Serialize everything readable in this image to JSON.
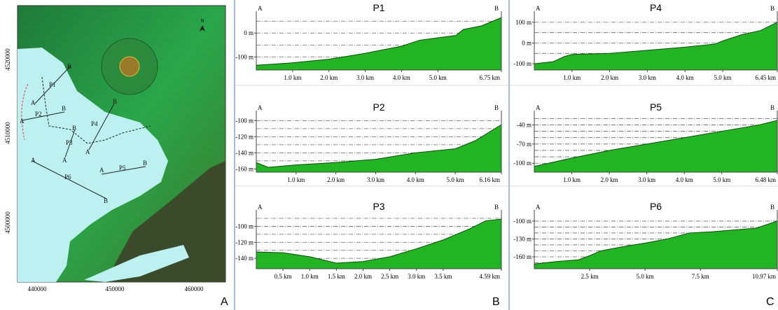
{
  "panel_labels": [
    "A",
    "B",
    "C"
  ],
  "map": {
    "north": "N",
    "xticks": [
      440000,
      450000,
      460000
    ],
    "yticks": [
      4520000,
      4510000,
      4500000
    ],
    "profiles": [
      {
        "name": "P1",
        "start": "A",
        "end": "B"
      },
      {
        "name": "P2",
        "start": "A",
        "end": "B"
      },
      {
        "name": "P3",
        "start": "A",
        "end": "B"
      },
      {
        "name": "P4",
        "start": "A",
        "end": "B"
      },
      {
        "name": "P5",
        "start": "A",
        "end": "B"
      },
      {
        "name": "P6",
        "start": "A",
        "end": "B"
      }
    ]
  },
  "chart_data": [
    {
      "type": "area",
      "title": "P1",
      "start_label": "A",
      "end_label": "B",
      "color": "#22b422",
      "x": [
        0,
        1,
        2,
        3,
        4,
        4.5,
        5,
        5.5,
        5.7,
        6.2,
        6.75
      ],
      "values": [
        -135,
        -125,
        -110,
        -85,
        -55,
        -30,
        -20,
        -10,
        15,
        30,
        65
      ],
      "xlim": [
        0,
        6.75
      ],
      "ylim": [
        -155,
        80
      ],
      "xticks": [
        {
          "value": 1,
          "label": "1.0 km"
        },
        {
          "value": 2,
          "label": "2.0 km"
        },
        {
          "value": 3,
          "label": "3.0 km"
        },
        {
          "value": 4,
          "label": "4.0 km"
        },
        {
          "value": 5,
          "label": "5.0 km"
        },
        {
          "value": 6.75,
          "label": "6.75 km"
        }
      ],
      "yticks": [
        {
          "value": 0,
          "label": "0 m"
        },
        {
          "value": -100,
          "label": "-100 m"
        }
      ],
      "grid_lines": [
        50,
        0,
        -50,
        -100,
        -150
      ]
    },
    {
      "type": "area",
      "title": "P2",
      "start_label": "A",
      "end_label": "B",
      "color": "#22b422",
      "x": [
        0,
        0.3,
        1,
        2,
        3,
        4,
        5,
        5.5,
        6.16
      ],
      "values": [
        -152,
        -158,
        -155,
        -152,
        -148,
        -140,
        -135,
        -125,
        -105
      ],
      "xlim": [
        0,
        6.16
      ],
      "ylim": [
        -164,
        -91
      ],
      "xticks": [
        {
          "value": 1,
          "label": "1.0 km"
        },
        {
          "value": 2,
          "label": "2.0 km"
        },
        {
          "value": 3,
          "label": "3.0 km"
        },
        {
          "value": 4,
          "label": "4.0 km"
        },
        {
          "value": 5,
          "label": "5.0 km"
        },
        {
          "value": 6.16,
          "label": "6.16 km"
        }
      ],
      "yticks": [
        {
          "value": -100,
          "label": "-100 m"
        },
        {
          "value": -120,
          "label": "-120 m"
        },
        {
          "value": -140,
          "label": "-140 m"
        },
        {
          "value": -160,
          "label": "-160 m"
        }
      ],
      "grid_lines": [
        -100,
        -110,
        -120,
        -130,
        -140,
        -150,
        -160
      ]
    },
    {
      "type": "area",
      "title": "P3",
      "start_label": "A",
      "end_label": "B",
      "color": "#22b422",
      "x": [
        0,
        0.5,
        1,
        1.5,
        2,
        2.5,
        3,
        3.5,
        4,
        4.3,
        4.59
      ],
      "values": [
        -132,
        -133,
        -138,
        -146,
        -144,
        -138,
        -128,
        -117,
        -103,
        -93,
        -91
      ],
      "xlim": [
        0,
        4.59
      ],
      "ylim": [
        -153,
        -83
      ],
      "xticks": [
        {
          "value": 0.5,
          "label": "0.5 km"
        },
        {
          "value": 1,
          "label": "1.0 km"
        },
        {
          "value": 1.5,
          "label": "1.5 km"
        },
        {
          "value": 2,
          "label": "2.0 km"
        },
        {
          "value": 2.5,
          "label": "2.5 km"
        },
        {
          "value": 3,
          "label": "3.0 km"
        },
        {
          "value": 3.5,
          "label": "3.5 km"
        },
        {
          "value": 4.59,
          "label": "4.59 km"
        }
      ],
      "yticks": [
        {
          "value": -100,
          "label": "-100 m"
        },
        {
          "value": -120,
          "label": "-120 m"
        },
        {
          "value": -140,
          "label": "-140 m"
        }
      ],
      "grid_lines": [
        -90,
        -100,
        -110,
        -120,
        -130,
        -140,
        -150
      ]
    },
    {
      "type": "area",
      "title": "P4",
      "start_label": "A",
      "end_label": "B",
      "color": "#22b422",
      "x": [
        0,
        0.5,
        0.8,
        1,
        2,
        3,
        4,
        4.8,
        5,
        5.5,
        6,
        6.45
      ],
      "values": [
        -100,
        -90,
        -65,
        -55,
        -50,
        -35,
        -20,
        -5,
        10,
        40,
        60,
        100
      ],
      "xlim": [
        0,
        6.45
      ],
      "ylim": [
        -130,
        140
      ],
      "xticks": [
        {
          "value": 1,
          "label": "1.0 km"
        },
        {
          "value": 2,
          "label": "2.0 km"
        },
        {
          "value": 3,
          "label": "3.0 km"
        },
        {
          "value": 4,
          "label": "4.0 km"
        },
        {
          "value": 5,
          "label": "5.0 km"
        },
        {
          "value": 6.45,
          "label": "6.45 km"
        }
      ],
      "yticks": [
        {
          "value": 100,
          "label": "100 m"
        },
        {
          "value": 0,
          "label": "0 m"
        },
        {
          "value": -100,
          "label": "-100 m"
        }
      ],
      "grid_lines": [
        100,
        50,
        0,
        -50,
        -100
      ]
    },
    {
      "type": "area",
      "title": "P5",
      "start_label": "A",
      "end_label": "B",
      "color": "#22b422",
      "x": [
        0,
        1,
        2,
        3,
        4,
        5,
        6,
        6.48
      ],
      "values": [
        -105,
        -92,
        -80,
        -70,
        -60,
        -50,
        -40,
        -33
      ],
      "xlim": [
        0,
        6.48
      ],
      "ylim": [
        -114,
        -22
      ],
      "xticks": [
        {
          "value": 1,
          "label": "1.0 km"
        },
        {
          "value": 2,
          "label": "2.0 km"
        },
        {
          "value": 3,
          "label": "3.0 km"
        },
        {
          "value": 4,
          "label": "4.0 km"
        },
        {
          "value": 5,
          "label": "5.0 km"
        },
        {
          "value": 6.48,
          "label": "6.48 km"
        }
      ],
      "yticks": [
        {
          "value": -40,
          "label": "-40 m"
        },
        {
          "value": -70,
          "label": "-70 m"
        },
        {
          "value": -100,
          "label": "-100 m"
        }
      ],
      "grid_lines": [
        -30,
        -40,
        -50,
        -60,
        -70,
        -80,
        -90,
        -100
      ]
    },
    {
      "type": "area",
      "title": "P6",
      "start_label": "A",
      "end_label": "B",
      "color": "#22b422",
      "x": [
        0,
        1,
        2,
        2.5,
        3,
        4,
        5,
        6,
        7,
        8,
        9,
        10,
        10.97
      ],
      "values": [
        -172,
        -168,
        -165,
        -158,
        -150,
        -143,
        -137,
        -130,
        -120,
        -118,
        -115,
        -112,
        -100
      ],
      "xlim": [
        0,
        10.97
      ],
      "ylim": [
        -180,
        -86
      ],
      "xticks": [
        {
          "value": 2.5,
          "label": "2.5 km"
        },
        {
          "value": 5,
          "label": "5.0 km"
        },
        {
          "value": 7.5,
          "label": "7.5 km"
        },
        {
          "value": 10.97,
          "label": "10.97 km"
        }
      ],
      "yticks": [
        {
          "value": -100,
          "label": "-100 m"
        },
        {
          "value": -130,
          "label": "-130 m"
        },
        {
          "value": -160,
          "label": "-160 m"
        }
      ],
      "grid_lines": [
        -100,
        -110,
        -120,
        -130,
        -140,
        -150,
        -160,
        -170
      ]
    }
  ]
}
